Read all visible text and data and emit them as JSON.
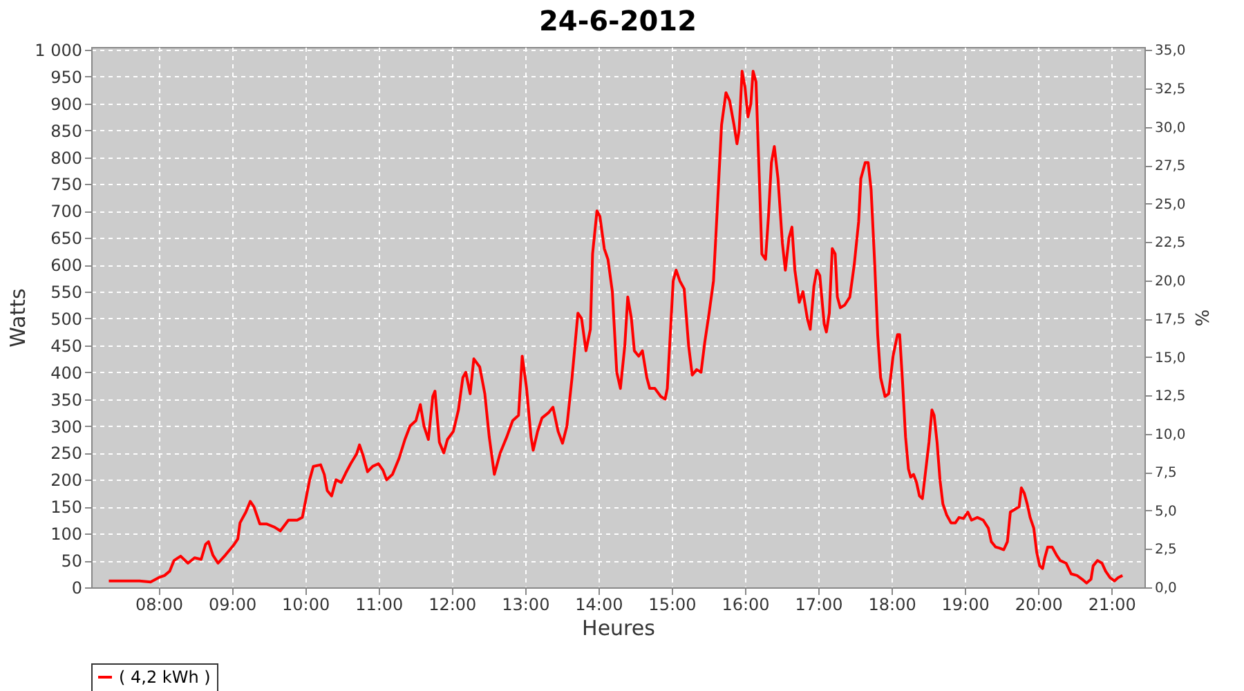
{
  "chart_data": {
    "type": "line",
    "title": "24-6-2012",
    "xlabel": "Heures",
    "ylabel": "Watts",
    "y2label": "%",
    "xlim": [
      7.08,
      21.45
    ],
    "xticks": [
      {
        "value": 8,
        "label": "08:00"
      },
      {
        "value": 9,
        "label": "09:00"
      },
      {
        "value": 10,
        "label": "10:00"
      },
      {
        "value": 11,
        "label": "11:00"
      },
      {
        "value": 12,
        "label": "12:00"
      },
      {
        "value": 13,
        "label": "13:00"
      },
      {
        "value": 14,
        "label": "14:00"
      },
      {
        "value": 15,
        "label": "15:00"
      },
      {
        "value": 16,
        "label": "16:00"
      },
      {
        "value": 17,
        "label": "17:00"
      },
      {
        "value": 18,
        "label": "18:00"
      },
      {
        "value": 19,
        "label": "19:00"
      },
      {
        "value": 20,
        "label": "20:00"
      },
      {
        "value": 21,
        "label": "21:00"
      }
    ],
    "ylim": [
      0,
      1005
    ],
    "yticks": [
      0,
      50,
      100,
      150,
      200,
      250,
      300,
      350,
      400,
      450,
      500,
      550,
      600,
      650,
      700,
      750,
      800,
      850,
      900,
      950,
      {
        "value": 1000,
        "label": "1 000"
      }
    ],
    "y2lim": [
      0,
      35.2
    ],
    "y2ticks": [
      {
        "value": 0,
        "label": "0,0"
      },
      {
        "value": 2.5,
        "label": "2,5"
      },
      {
        "value": 5,
        "label": "5,0"
      },
      {
        "value": 7.5,
        "label": "7,5"
      },
      {
        "value": 10,
        "label": "10,0"
      },
      {
        "value": 12.5,
        "label": "12,5"
      },
      {
        "value": 15,
        "label": "15,0"
      },
      {
        "value": 17.5,
        "label": "17,5"
      },
      {
        "value": 20,
        "label": "20,0"
      },
      {
        "value": 22.5,
        "label": "22,5"
      },
      {
        "value": 25,
        "label": "25,0"
      },
      {
        "value": 27.5,
        "label": "27,5"
      },
      {
        "value": 30,
        "label": "30,0"
      },
      {
        "value": 32.5,
        "label": "32,5"
      },
      {
        "value": 35,
        "label": "35,0"
      }
    ],
    "grid": true,
    "legend": "bottom",
    "marker": "none",
    "line_style": "solid",
    "series": [
      {
        "name": "( 4,2 kWh )",
        "color": "#ff0000",
        "x": [
          7.32,
          7.74,
          7.89,
          8.0,
          8.08,
          8.15,
          8.21,
          8.3,
          8.4,
          8.49,
          8.58,
          8.64,
          8.68,
          8.74,
          8.81,
          8.91,
          9.02,
          9.08,
          9.11,
          9.19,
          9.25,
          9.3,
          9.38,
          9.47,
          9.58,
          9.66,
          9.77,
          9.89,
          9.96,
          10.06,
          10.11,
          10.21,
          10.26,
          10.3,
          10.36,
          10.42,
          10.49,
          10.55,
          10.62,
          10.7,
          10.74,
          10.79,
          10.85,
          10.92,
          11.0,
          11.06,
          11.11,
          11.19,
          11.28,
          11.36,
          11.43,
          11.51,
          11.57,
          11.62,
          11.68,
          11.74,
          11.77,
          11.83,
          11.89,
          11.94,
          12.02,
          12.09,
          12.15,
          12.19,
          12.25,
          12.3,
          12.38,
          12.45,
          12.51,
          12.58,
          12.66,
          12.75,
          12.83,
          12.91,
          12.96,
          13.02,
          13.08,
          13.11,
          13.17,
          13.23,
          13.32,
          13.38,
          13.45,
          13.51,
          13.57,
          13.64,
          13.72,
          13.77,
          13.83,
          13.89,
          13.92,
          13.98,
          14.02,
          14.08,
          14.13,
          14.19,
          14.25,
          14.3,
          14.36,
          14.4,
          14.45,
          14.49,
          14.55,
          14.6,
          14.66,
          14.7,
          14.77,
          14.85,
          14.91,
          14.94,
          14.98,
          15.02,
          15.06,
          15.11,
          15.17,
          15.23,
          15.28,
          15.34,
          15.4,
          15.45,
          15.51,
          15.57,
          15.62,
          15.68,
          15.74,
          15.79,
          15.85,
          15.89,
          15.92,
          15.96,
          16.0,
          16.04,
          16.08,
          16.11,
          16.15,
          16.19,
          16.23,
          16.28,
          16.32,
          16.36,
          16.4,
          16.45,
          16.51,
          16.55,
          16.6,
          16.64,
          16.68,
          16.74,
          16.79,
          16.85,
          16.89,
          16.94,
          16.98,
          17.02,
          17.08,
          17.11,
          17.15,
          17.19,
          17.23,
          17.26,
          17.3,
          17.36,
          17.43,
          17.49,
          17.55,
          17.58,
          17.64,
          17.68,
          17.72,
          17.77,
          17.81,
          17.85,
          17.91,
          17.96,
          18.02,
          18.08,
          18.11,
          18.15,
          18.19,
          18.23,
          18.26,
          18.3,
          18.34,
          18.38,
          18.42,
          18.45,
          18.51,
          18.55,
          18.58,
          18.62,
          18.66,
          18.7,
          18.75,
          18.81,
          18.87,
          18.92,
          18.98,
          19.04,
          19.09,
          19.17,
          19.25,
          19.32,
          19.36,
          19.42,
          19.47,
          19.53,
          19.58,
          19.62,
          19.68,
          19.74,
          19.77,
          19.81,
          19.85,
          19.89,
          19.94,
          19.98,
          20.02,
          20.06,
          20.09,
          20.13,
          20.19,
          20.25,
          20.3,
          20.38,
          20.45,
          20.53,
          20.6,
          20.66,
          20.72,
          20.75,
          20.81,
          20.87,
          20.92,
          20.98,
          21.04,
          21.09,
          21.15
        ],
        "values": [
          12,
          12,
          10,
          18,
          22,
          30,
          50,
          58,
          45,
          55,
          52,
          80,
          85,
          60,
          45,
          60,
          78,
          90,
          120,
          140,
          160,
          150,
          118,
          118,
          112,
          105,
          125,
          125,
          130,
          200,
          225,
          228,
          210,
          180,
          170,
          200,
          195,
          212,
          230,
          248,
          265,
          245,
          215,
          225,
          230,
          218,
          200,
          210,
          240,
          275,
          300,
          310,
          340,
          300,
          275,
          355,
          365,
          270,
          250,
          275,
          290,
          330,
          390,
          400,
          360,
          425,
          410,
          360,
          280,
          210,
          250,
          280,
          310,
          320,
          430,
          370,
          280,
          255,
          290,
          315,
          325,
          335,
          290,
          268,
          300,
          390,
          510,
          500,
          440,
          480,
          620,
          700,
          690,
          630,
          610,
          550,
          400,
          370,
          450,
          540,
          500,
          440,
          430,
          440,
          390,
          370,
          370,
          355,
          350,
          370,
          470,
          570,
          590,
          570,
          555,
          450,
          395,
          405,
          400,
          455,
          510,
          570,
          700,
          860,
          920,
          905,
          860,
          825,
          850,
          960,
          930,
          875,
          900,
          960,
          940,
          780,
          620,
          610,
          690,
          790,
          820,
          760,
          640,
          590,
          650,
          670,
          590,
          530,
          550,
          500,
          480,
          560,
          590,
          580,
          490,
          475,
          510,
          630,
          620,
          540,
          520,
          525,
          540,
          600,
          680,
          760,
          790,
          790,
          740,
          600,
          470,
          390,
          355,
          360,
          430,
          470,
          470,
          380,
          280,
          220,
          205,
          210,
          195,
          170,
          165,
          200,
          270,
          330,
          320,
          270,
          200,
          155,
          135,
          120,
          120,
          130,
          128,
          140,
          125,
          130,
          125,
          110,
          85,
          75,
          73,
          70,
          85,
          140,
          145,
          150,
          185,
          175,
          155,
          130,
          110,
          65,
          40,
          35,
          55,
          75,
          75,
          60,
          50,
          45,
          25,
          22,
          15,
          8,
          15,
          40,
          50,
          45,
          30,
          18,
          12,
          18,
          22
        ]
      }
    ]
  }
}
